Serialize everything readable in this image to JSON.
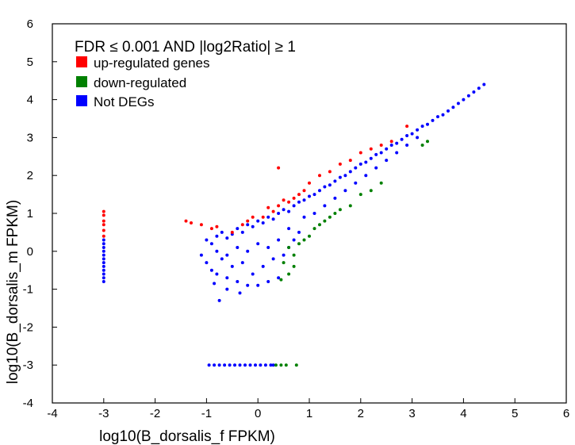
{
  "chart_data": {
    "type": "scatter",
    "xlabel": "log10(B_dorsalis_f FPKM)",
    "ylabel": "log10(B_dorsalis_m FPKM)",
    "xlim": [
      -4,
      6
    ],
    "ylim": [
      -4,
      6
    ],
    "x_ticks": [
      "-4",
      "-3",
      "-2",
      "-1",
      "0",
      "1",
      "2",
      "3",
      "4",
      "5",
      "6"
    ],
    "y_ticks": [
      "-4",
      "-3",
      "-2",
      "-1",
      "0",
      "1",
      "2",
      "3",
      "4",
      "5",
      "6"
    ],
    "grid": false,
    "legend": {
      "placement": "top-left",
      "title": "FDR ≤ 0.001 AND |log2Ratio| ≥ 1",
      "entries": [
        {
          "label": "up-regulated genes",
          "color": "#ff0000"
        },
        {
          "label": "down-regulated",
          "color": "#008000"
        },
        {
          "label": "Not DEGs",
          "color": "#0000ff"
        }
      ]
    },
    "series": [
      {
        "color": "#0000ff",
        "points": [
          [
            -1.0,
            0.3
          ],
          [
            -0.9,
            0.2
          ],
          [
            -0.8,
            0.4
          ],
          [
            -0.7,
            0.5
          ],
          [
            -0.6,
            0.35
          ],
          [
            -0.5,
            0.45
          ],
          [
            -0.4,
            0.6
          ],
          [
            -0.3,
            0.5
          ],
          [
            -0.2,
            0.7
          ],
          [
            -0.1,
            0.65
          ],
          [
            0.0,
            0.8
          ],
          [
            0.1,
            0.75
          ],
          [
            0.2,
            0.9
          ],
          [
            0.3,
            0.85
          ],
          [
            0.4,
            1.0
          ],
          [
            0.5,
            1.1
          ],
          [
            0.6,
            1.05
          ],
          [
            0.7,
            1.2
          ],
          [
            0.8,
            1.3
          ],
          [
            0.9,
            1.35
          ],
          [
            1.0,
            1.45
          ],
          [
            1.1,
            1.5
          ],
          [
            1.2,
            1.6
          ],
          [
            1.3,
            1.7
          ],
          [
            1.4,
            1.75
          ],
          [
            1.5,
            1.85
          ],
          [
            1.6,
            1.95
          ],
          [
            1.7,
            2.0
          ],
          [
            1.8,
            2.1
          ],
          [
            1.9,
            2.2
          ],
          [
            2.0,
            2.3
          ],
          [
            2.1,
            2.35
          ],
          [
            2.2,
            2.45
          ],
          [
            2.3,
            2.55
          ],
          [
            2.4,
            2.6
          ],
          [
            2.5,
            2.7
          ],
          [
            2.6,
            2.8
          ],
          [
            2.7,
            2.85
          ],
          [
            2.8,
            2.95
          ],
          [
            2.9,
            3.05
          ],
          [
            3.0,
            3.1
          ],
          [
            3.1,
            3.2
          ],
          [
            3.2,
            3.3
          ],
          [
            3.3,
            3.35
          ],
          [
            3.4,
            3.45
          ],
          [
            3.5,
            3.55
          ],
          [
            3.6,
            3.6
          ],
          [
            3.7,
            3.7
          ],
          [
            3.8,
            3.8
          ],
          [
            3.9,
            3.9
          ],
          [
            4.0,
            4.0
          ],
          [
            4.1,
            4.1
          ],
          [
            4.2,
            4.2
          ],
          [
            4.3,
            4.3
          ],
          [
            4.4,
            4.4
          ],
          [
            -1.1,
            -0.1
          ],
          [
            -1.0,
            -0.3
          ],
          [
            -0.9,
            -0.5
          ],
          [
            -0.8,
            -0.6
          ],
          [
            -0.7,
            -0.2
          ],
          [
            -0.6,
            -0.7
          ],
          [
            -0.5,
            -0.4
          ],
          [
            -0.4,
            -0.8
          ],
          [
            -0.3,
            -0.3
          ],
          [
            -0.2,
            -0.9
          ],
          [
            -0.1,
            -0.6
          ],
          [
            0.0,
            -0.9
          ],
          [
            0.1,
            -0.4
          ],
          [
            0.2,
            -0.8
          ],
          [
            0.3,
            -0.2
          ],
          [
            0.4,
            -0.7
          ],
          [
            0.5,
            -0.1
          ],
          [
            0.6,
            0.1
          ],
          [
            0.7,
            0.3
          ],
          [
            0.8,
            0.5
          ],
          [
            0.2,
            0.1
          ],
          [
            0.0,
            0.2
          ],
          [
            -0.2,
            0.0
          ],
          [
            -0.4,
            0.1
          ],
          [
            -0.6,
            -0.1
          ],
          [
            -0.8,
            0.0
          ],
          [
            0.4,
            0.3
          ],
          [
            0.6,
            0.6
          ],
          [
            0.9,
            0.9
          ],
          [
            1.1,
            1.0
          ],
          [
            1.3,
            1.2
          ],
          [
            1.5,
            1.4
          ],
          [
            1.7,
            1.6
          ],
          [
            1.9,
            1.8
          ],
          [
            2.1,
            2.0
          ],
          [
            2.3,
            2.2
          ],
          [
            2.5,
            2.4
          ],
          [
            2.7,
            2.6
          ],
          [
            2.9,
            2.8
          ],
          [
            3.1,
            3.0
          ],
          [
            -0.75,
            -1.3
          ],
          [
            -0.6,
            -1.0
          ],
          [
            -0.35,
            -1.1
          ],
          [
            -0.85,
            -0.85
          ],
          [
            -3.0,
            0.3
          ],
          [
            -3.0,
            0.2
          ],
          [
            -3.0,
            0.1
          ],
          [
            -3.0,
            0.0
          ],
          [
            -3.0,
            -0.1
          ],
          [
            -3.0,
            -0.2
          ],
          [
            -3.0,
            -0.3
          ],
          [
            -3.0,
            -0.4
          ],
          [
            -3.0,
            -0.5
          ],
          [
            -3.0,
            -0.6
          ],
          [
            -3.0,
            -0.7
          ],
          [
            -3.0,
            -0.8
          ],
          [
            -0.95,
            -3.0
          ],
          [
            -0.85,
            -3.0
          ],
          [
            -0.75,
            -3.0
          ],
          [
            -0.65,
            -3.0
          ],
          [
            -0.55,
            -3.0
          ],
          [
            -0.45,
            -3.0
          ],
          [
            -0.35,
            -3.0
          ],
          [
            -0.25,
            -3.0
          ],
          [
            -0.15,
            -3.0
          ],
          [
            -0.05,
            -3.0
          ],
          [
            0.05,
            -3.0
          ],
          [
            0.15,
            -3.0
          ],
          [
            0.25,
            -3.0
          ],
          [
            0.3,
            -3.0
          ]
        ]
      },
      {
        "color": "#ff0000",
        "points": [
          [
            -1.4,
            0.8
          ],
          [
            -1.3,
            0.75
          ],
          [
            -1.1,
            0.7
          ],
          [
            -0.9,
            0.6
          ],
          [
            -0.8,
            0.65
          ],
          [
            -0.5,
            0.5
          ],
          [
            -0.3,
            0.7
          ],
          [
            -0.2,
            0.8
          ],
          [
            0.1,
            0.9
          ],
          [
            0.3,
            1.05
          ],
          [
            0.4,
            1.2
          ],
          [
            0.6,
            1.3
          ],
          [
            0.7,
            1.4
          ],
          [
            0.8,
            1.5
          ],
          [
            0.9,
            1.6
          ],
          [
            1.0,
            1.8
          ],
          [
            1.2,
            2.0
          ],
          [
            1.4,
            2.1
          ],
          [
            1.6,
            2.3
          ],
          [
            1.8,
            2.4
          ],
          [
            2.0,
            2.6
          ],
          [
            2.2,
            2.7
          ],
          [
            2.4,
            2.8
          ],
          [
            2.6,
            2.9
          ],
          [
            2.9,
            3.3
          ],
          [
            0.4,
            2.2
          ],
          [
            0.5,
            1.35
          ],
          [
            -0.1,
            0.9
          ],
          [
            0.2,
            1.15
          ],
          [
            -3.0,
            1.05
          ],
          [
            -3.0,
            0.95
          ],
          [
            -3.0,
            0.8
          ],
          [
            -3.0,
            0.7
          ],
          [
            -3.0,
            0.55
          ],
          [
            -3.0,
            0.4
          ]
        ]
      },
      {
        "color": "#008000",
        "points": [
          [
            0.6,
            0.1
          ],
          [
            0.7,
            -0.1
          ],
          [
            0.8,
            0.2
          ],
          [
            0.9,
            0.3
          ],
          [
            1.0,
            0.4
          ],
          [
            1.1,
            0.6
          ],
          [
            1.2,
            0.7
          ],
          [
            1.3,
            0.8
          ],
          [
            1.4,
            0.9
          ],
          [
            1.5,
            1.0
          ],
          [
            1.6,
            1.1
          ],
          [
            1.8,
            1.2
          ],
          [
            2.0,
            1.5
          ],
          [
            2.2,
            1.6
          ],
          [
            2.4,
            1.8
          ],
          [
            3.2,
            2.8
          ],
          [
            3.3,
            2.9
          ],
          [
            0.5,
            -0.3
          ],
          [
            0.6,
            -0.6
          ],
          [
            0.7,
            -0.4
          ],
          [
            0.45,
            -0.75
          ],
          [
            0.35,
            -3.0
          ],
          [
            0.45,
            -3.0
          ],
          [
            0.55,
            -3.0
          ],
          [
            0.75,
            -3.0
          ]
        ]
      }
    ]
  }
}
